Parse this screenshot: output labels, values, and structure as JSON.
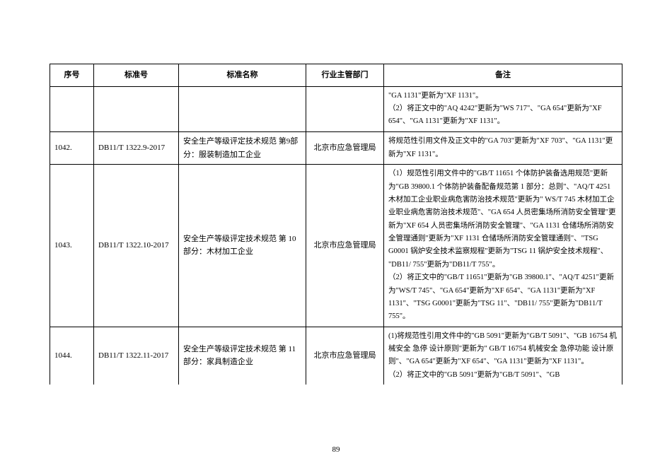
{
  "table": {
    "headers": {
      "seq": "序号",
      "code": "标准号",
      "name": "标准名称",
      "dept": "行业主管部门",
      "remark": "备注"
    },
    "rows": [
      {
        "seq": "",
        "code": "",
        "name": "",
        "dept": "",
        "remark": "\"GA 1131\"更新为\"XF 1131\"。\n（2）将正文中的\"AQ 4242\"更新为\"WS 717\"、\"GA 654\"更新为\"XF 654\"、\"GA 1131\"更新为\"XF 1131\"。"
      },
      {
        "seq": "1042.",
        "code": "DB11/T 1322.9-2017",
        "name": "安全生产等级评定技术规范 第9部分：服装制造加工企业",
        "dept": "北京市应急管理局",
        "remark": "将规范性引用文件及正文中的\"GA 703\"更新为\"XF 703\"、\"GA 1131\"更新为\"XF 1131\"。"
      },
      {
        "seq": "1043.",
        "code": "DB11/T 1322.10-2017",
        "name": "安全生产等级评定技术规范 第 10 部分：木材加工企业",
        "dept": "北京市应急管理局",
        "remark": "（1）规范性引用文件中的\"GB/T 11651 个体防护装备选用规范\"更新为\"GB 39800.1 个体防护装备配备规范第 1 部分：总则\"、\"AQ/T 4251  木材加工企业职业病危害防治技术规范\"更新为\" WS/T 745 木材加工企业职业病危害防治技术规范\"、\"GA 654  人员密集场所消防安全管理\"更新为\"XF 654 人员密集场所消防安全管理\"、\"GA 1131  仓储场所消防安全管理通则\"更新为\"XF 1131 仓储场所消防安全管理通则\"、\"TSG G0001 锅炉安全技术监察规程\"更新为\"TSG 11 锅炉安全技术规程\"、 \"DB11/ 755\"更新为\"DB11/T 755\"。\n（2）将正文中的\"GB/T 11651\"更新为\"GB 39800.1\"、\"AQ/T 4251\"更新为\"WS/T 745\"、\"GA 654\"更新为\"XF 654\"、\"GA 1131\"更新为\"XF 1131\"、\"TSG G0001\"更新为\"TSG 11\"、\"DB11/ 755\"更新为\"DB11/T 755\"。"
      },
      {
        "seq": "1044.",
        "code": "DB11/T 1322.11-2017",
        "name": "安全生产等级评定技术规范 第 11 部分：家具制造企业",
        "dept": "北京市应急管理局",
        "remark": "(1)将规范性引用文件中的\"GB 5091\"更新为\"GB/T 5091\"、\"GB 16754  机械安全 急停 设计原则\"更新为\" GB/T 16754 机械安全 急停功能 设计原则\"、\"GA 654\"更新为\"XF 654\"、\"GA 1131\"更新为\"XF 1131\"。\n（2）将正文中的\"GB 5091\"更新为\"GB/T 5091\"、\"GB"
      }
    ]
  },
  "pageNumber": "89",
  "styling": {
    "background_color": "#ffffff",
    "border_color": "#000000",
    "text_color": "#000000",
    "header_fontsize": 11,
    "cell_fontsize": 11,
    "remark_fontsize": 10.5,
    "font_family": "SimSun",
    "line_height": 1.7
  }
}
